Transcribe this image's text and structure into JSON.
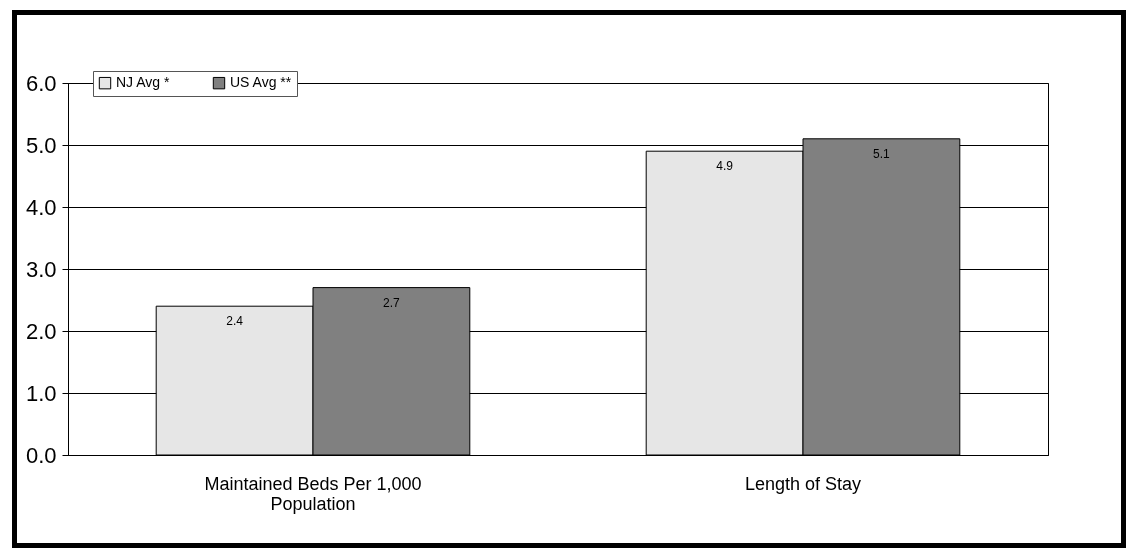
{
  "chart_data": {
    "type": "bar",
    "categories": [
      "Maintained Beds Per 1,000 Population",
      "Length of Stay"
    ],
    "series": [
      {
        "name": "NJ Avg *",
        "color": "#e6e6e6",
        "values": [
          2.4,
          4.9
        ]
      },
      {
        "name": "US Avg **",
        "color": "#808080",
        "values": [
          2.7,
          5.1
        ]
      }
    ],
    "ylim": [
      0,
      6
    ],
    "yticks": [
      {
        "value": 0,
        "label": "0.0"
      },
      {
        "value": 1,
        "label": "1.0"
      },
      {
        "value": 2,
        "label": "2.0"
      },
      {
        "value": 3,
        "label": "3.0"
      },
      {
        "value": 4,
        "label": "4.0"
      },
      {
        "value": 5,
        "label": "5.0"
      },
      {
        "value": 6,
        "label": "6.0"
      }
    ],
    "grid": "y",
    "legend": "top left",
    "data_labels": true
  }
}
